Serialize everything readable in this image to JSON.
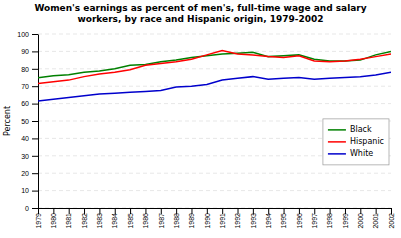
{
  "chart_data": {
    "type": "line",
    "title": "Women's earnings as percent of men's, full-time wage and salary\nworkers, by race and Hispanic origin, 1979-2002",
    "y_label": "Percent",
    "x": [
      1979,
      1980,
      1981,
      1982,
      1983,
      1984,
      1985,
      1986,
      1987,
      1988,
      1989,
      1990,
      1991,
      1992,
      1993,
      1994,
      1995,
      1996,
      1997,
      1998,
      1999,
      2000,
      2001,
      2002
    ],
    "series": [
      {
        "name": "Black",
        "color": "#008000",
        "values": [
          74.9,
          76.0,
          76.6,
          78.0,
          78.8,
          80.0,
          82.0,
          82.5,
          84.0,
          85.0,
          86.5,
          87.5,
          88.5,
          89.0,
          89.5,
          87.0,
          87.5,
          88.0,
          85.5,
          84.5,
          84.5,
          85.0,
          88.0,
          90.0
        ]
      },
      {
        "name": "Hispanic",
        "color": "#ff0000",
        "values": [
          71.5,
          72.5,
          73.5,
          75.5,
          77.0,
          78.0,
          79.5,
          82.0,
          83.0,
          84.0,
          85.5,
          88.0,
          90.5,
          88.5,
          88.0,
          87.0,
          86.5,
          87.5,
          84.5,
          84.0,
          84.5,
          85.5,
          87.0,
          88.5
        ]
      },
      {
        "name": "White",
        "color": "#0000cc",
        "values": [
          61.5,
          62.5,
          63.5,
          64.5,
          65.5,
          66.0,
          66.5,
          67.0,
          67.5,
          69.5,
          70.0,
          71.0,
          73.5,
          74.5,
          75.5,
          74.0,
          74.5,
          75.0,
          74.0,
          74.5,
          75.0,
          75.5,
          76.5,
          78.0
        ]
      }
    ],
    "xlim": [
      1979,
      2002
    ],
    "xticks": [
      1979,
      1980,
      1981,
      1982,
      1983,
      1984,
      1985,
      1986,
      1987,
      1988,
      1989,
      1990,
      1991,
      1992,
      1993,
      1994,
      1995,
      1996,
      1997,
      1998,
      1999,
      2000,
      2001,
      2002
    ],
    "ylim": [
      0,
      100
    ],
    "yticks": [
      0,
      10,
      20,
      30,
      40,
      50,
      60,
      70,
      80,
      90,
      100
    ],
    "grid": true,
    "legend": "right"
  }
}
